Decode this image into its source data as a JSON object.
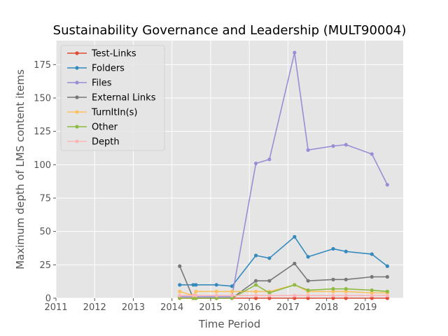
{
  "chart_data": {
    "type": "line",
    "title": "Sustainability Governance and Leadership (MULT90004)",
    "xlabel": "Time Period",
    "ylabel": "Maximum depth of LMS content items",
    "xlim": [
      2011,
      2019.98
    ],
    "ylim": [
      0,
      193
    ],
    "xticks": [
      2011,
      2012,
      2013,
      2014,
      2015,
      2016,
      2017,
      2018,
      2019
    ],
    "yticks": [
      0,
      25,
      50,
      75,
      100,
      125,
      150,
      175
    ],
    "grid": true,
    "legend_position": "top-left",
    "x": [
      2014.2,
      2014.55,
      2014.62,
      2015.15,
      2015.55,
      2016.17,
      2016.52,
      2017.17,
      2017.52,
      2018.17,
      2018.5,
      2019.17,
      2019.57
    ],
    "series": [
      {
        "name": "Test-Links",
        "color": "#e24a33",
        "values": [
          0,
          0,
          0,
          0,
          0,
          0,
          0,
          0,
          0,
          0,
          0,
          0,
          0
        ]
      },
      {
        "name": "Folders",
        "color": "#348abd",
        "values": [
          10,
          10,
          10,
          10,
          9,
          32,
          30,
          46,
          31,
          37,
          35,
          33,
          24
        ]
      },
      {
        "name": "Files",
        "color": "#988ed5",
        "values": [
          1,
          1,
          1,
          1,
          1,
          101,
          104,
          184,
          111,
          114,
          115,
          108,
          85
        ]
      },
      {
        "name": "External Links",
        "color": "#777777",
        "values": [
          24,
          0,
          0,
          0,
          0,
          13,
          13,
          26,
          13,
          14,
          14,
          16,
          16
        ]
      },
      {
        "name": "TurnItIn(s)",
        "color": "#fbc15e",
        "values": [
          5,
          2,
          5,
          5,
          5,
          5,
          5,
          10,
          5,
          5,
          5,
          4,
          4
        ]
      },
      {
        "name": "Other",
        "color": "#8eba42",
        "values": [
          0,
          0,
          0,
          0,
          0,
          10,
          4,
          10,
          6,
          7,
          7,
          6,
          5
        ]
      },
      {
        "name": "Depth",
        "color": "#ffb5b8",
        "values": [
          2,
          2,
          2,
          2,
          2,
          2,
          2,
          2,
          2,
          2,
          2,
          2,
          2
        ]
      }
    ]
  }
}
